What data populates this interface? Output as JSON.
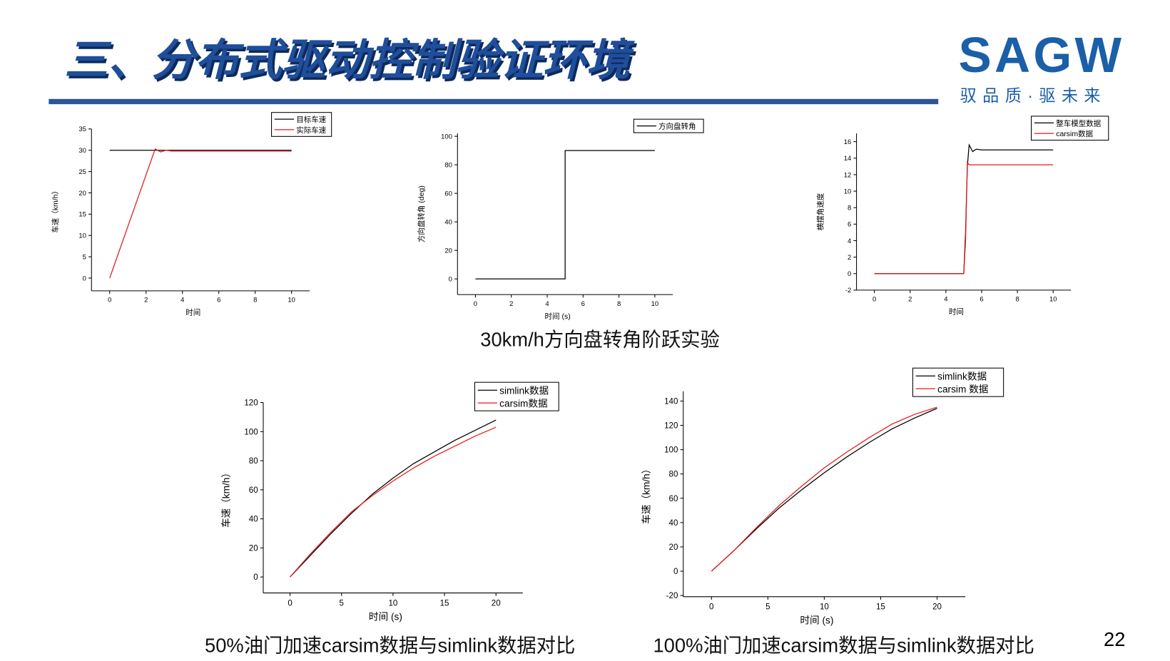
{
  "header": {
    "title": "三、分布式驱动控制验证环境",
    "logo": "SAGW",
    "tagline": "驭品质·驱未来"
  },
  "captions": [
    "30km/h方向盘转角阶跃实验",
    "50%油门加速carsim数据与simlink数据对比",
    "100%油门加速carsim数据与simlink数据对比"
  ],
  "page_number": "22",
  "chart_data": [
    {
      "type": "line",
      "x_label": "时间",
      "y_label": "车速（km/h）",
      "x": [
        0,
        2.5,
        2.8,
        3.1,
        3.4,
        10
      ],
      "series": [
        {
          "name": "目标车速",
          "color": "#000000",
          "values": [
            30,
            30,
            30,
            30,
            30,
            30
          ]
        },
        {
          "name": "实际车速",
          "color": "#e41a1c",
          "values": [
            0,
            30.3,
            29.6,
            30,
            29.8,
            29.8
          ]
        }
      ],
      "xlim": [
        -1,
        11
      ],
      "xticks": [
        0,
        2,
        4,
        6,
        8,
        10
      ],
      "ylim": [
        -3,
        35
      ],
      "yticks": [
        0,
        5,
        10,
        15,
        20,
        25,
        30,
        35
      ]
    },
    {
      "type": "line",
      "x_label": "时间 (s)",
      "y_label": "方向盘转角 (deg)",
      "x": [
        0,
        5,
        5,
        10
      ],
      "series": [
        {
          "name": "方向盘转角",
          "color": "#000000",
          "values": [
            0,
            0,
            90,
            90
          ]
        }
      ],
      "xlim": [
        -1,
        11
      ],
      "xticks": [
        0,
        2,
        4,
        6,
        8,
        10
      ],
      "ylim": [
        -11,
        102
      ],
      "yticks": [
        0,
        20,
        40,
        60,
        80,
        100
      ]
    },
    {
      "type": "line",
      "x_label": "时间",
      "y_label": "横摆角速度",
      "x": [
        0,
        5,
        5.1,
        5.2,
        5.3,
        5.4,
        5.5,
        5.7,
        6,
        10
      ],
      "series": [
        {
          "name": "整车模型数据",
          "color": "#000000",
          "values": [
            0,
            0,
            5,
            13,
            15.6,
            15.2,
            14.8,
            15.1,
            15,
            15
          ]
        },
        {
          "name": "carsim数据",
          "color": "#e41a1c",
          "values": [
            0,
            0,
            4,
            13.5,
            13.2,
            13.2,
            13.2,
            13.2,
            13.2,
            13.2
          ]
        }
      ],
      "xlim": [
        -1,
        11
      ],
      "xticks": [
        0,
        2,
        4,
        6,
        8,
        10
      ],
      "ylim": [
        -2,
        17
      ],
      "yticks": [
        -2,
        0,
        2,
        4,
        6,
        8,
        10,
        12,
        14,
        16
      ]
    },
    {
      "type": "line",
      "x_label": "时间 (s)",
      "y_label": "车速（km/h）",
      "x": [
        0,
        2,
        4,
        6,
        8,
        10,
        12,
        14,
        16,
        18,
        20
      ],
      "series": [
        {
          "name": "simlink数据",
          "color": "#000000",
          "values": [
            0,
            15,
            30,
            44,
            57,
            68,
            78,
            86,
            94,
            101,
            108
          ]
        },
        {
          "name": "carsim数据",
          "color": "#e41a1c",
          "values": [
            0,
            16,
            31,
            45,
            56,
            66,
            75,
            83,
            90,
            97,
            103
          ]
        }
      ],
      "xlim": [
        -2.6,
        22.6
      ],
      "xticks": [
        0,
        5,
        10,
        15,
        20
      ],
      "ylim": [
        -11,
        120
      ],
      "yticks": [
        0,
        20,
        40,
        60,
        80,
        100,
        120
      ]
    },
    {
      "type": "line",
      "x_label": "时间 (s)",
      "y_label": "车速（km/h）",
      "x": [
        0,
        2,
        4,
        6,
        8,
        10,
        12,
        14,
        16,
        18,
        20
      ],
      "series": [
        {
          "name": "simlink数据",
          "color": "#000000",
          "values": [
            0,
            17,
            35,
            52,
            67,
            81,
            94,
            106,
            117,
            126,
            134
          ]
        },
        {
          "name": "carsim 数据",
          "color": "#e41a1c",
          "values": [
            0,
            17,
            36,
            54,
            70,
            85,
            98,
            110,
            121,
            129,
            135
          ]
        }
      ],
      "xlim": [
        -2.5,
        22.5
      ],
      "xticks": [
        0,
        5,
        10,
        15,
        20
      ],
      "ylim": [
        -21,
        148
      ],
      "yticks": [
        -20,
        0,
        20,
        40,
        60,
        80,
        100,
        120,
        140
      ]
    }
  ]
}
